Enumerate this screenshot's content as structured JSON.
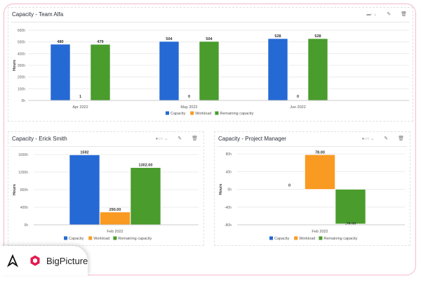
{
  "panels": [
    {
      "title": "Capacity - Team Alfa",
      "toggle": "▬▫ ⌄",
      "edit_icon": "pencil-icon",
      "delete_icon": "trash-icon"
    },
    {
      "title": "Capacity - Erick Smith",
      "toggle": "●○○ ⌄",
      "edit_icon": "pencil-icon",
      "delete_icon": "trash-icon"
    },
    {
      "title": "Capacity - Project Manager",
      "toggle": "●○○ ⌄",
      "edit_icon": "pencil-icon",
      "delete_icon": "trash-icon"
    }
  ],
  "logo": {
    "brand": "BigPicture",
    "accent": "#e5184e"
  },
  "chart_data": [
    {
      "type": "bar",
      "ylabel": "Hours",
      "categories": [
        "Apr 2022",
        "May 2022",
        "Jun 2022"
      ],
      "ylim": [
        0,
        600
      ],
      "yticks": [
        "0h",
        "100h",
        "200h",
        "300h",
        "400h",
        "500h",
        "600h"
      ],
      "grid": true,
      "legend": "bottom",
      "series": [
        {
          "name": "Capacity",
          "color": "#2569d4",
          "values": [
            480,
            504,
            528
          ],
          "labels": [
            "480",
            "504",
            "528"
          ]
        },
        {
          "name": "Workload",
          "color": "#f99a22",
          "values": [
            1,
            0,
            0
          ],
          "labels": [
            "1",
            "0",
            "0"
          ]
        },
        {
          "name": "Remaining capacity",
          "color": "#4a9c2d",
          "values": [
            479,
            504,
            528
          ],
          "labels": [
            "479",
            "504",
            "528"
          ]
        }
      ]
    },
    {
      "type": "bar",
      "ylabel": "Hours",
      "categories": [
        "Feb 2022"
      ],
      "ylim": [
        0,
        1600
      ],
      "yticks": [
        "0h",
        "400h",
        "800h",
        "1200h",
        "1600h"
      ],
      "grid": true,
      "legend": "bottom",
      "series": [
        {
          "name": "Capacity",
          "color": "#2569d4",
          "values": [
            1592
          ],
          "labels": [
            "1592"
          ]
        },
        {
          "name": "Workload",
          "color": "#f99a22",
          "values": [
            290
          ],
          "labels": [
            "290.00"
          ]
        },
        {
          "name": "Remaining capacity",
          "color": "#4a9c2d",
          "values": [
            1302
          ],
          "labels": [
            "1302.00"
          ]
        }
      ]
    },
    {
      "type": "bar",
      "ylabel": "Hours",
      "categories": [
        "Feb 2022"
      ],
      "ylim": [
        -80,
        80
      ],
      "yticks": [
        "-80h",
        "-40h",
        "0h",
        "40h",
        "80h"
      ],
      "grid": true,
      "legend": "bottom",
      "series": [
        {
          "name": "Capacity",
          "color": "#2569d4",
          "values": [
            0
          ],
          "labels": [
            "0"
          ]
        },
        {
          "name": "Workload",
          "color": "#f99a22",
          "values": [
            78
          ],
          "labels": [
            "78.00"
          ]
        },
        {
          "name": "Remaining capacity",
          "color": "#4a9c2d",
          "values": [
            -78
          ],
          "labels": [
            "-78.00"
          ]
        }
      ]
    }
  ]
}
